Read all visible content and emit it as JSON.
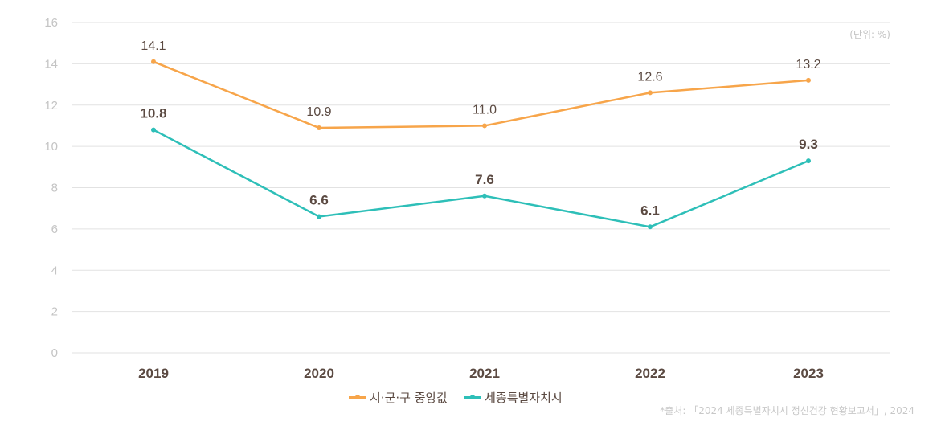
{
  "chart_data": {
    "type": "line",
    "title": "",
    "unit_label": "(단위: %)",
    "xlabel": "",
    "ylabel": "",
    "categories": [
      "2019",
      "2020",
      "2021",
      "2022",
      "2023"
    ],
    "yticks": [
      "0",
      "2",
      "4",
      "6",
      "8",
      "10",
      "12",
      "14",
      "16"
    ],
    "ylim": [
      0,
      16
    ],
    "grid": true,
    "legend_position": "bottom-center",
    "series": [
      {
        "name": "시·군·구 중앙값",
        "color": "#f7a54a",
        "values": [
          14.1,
          10.9,
          11.0,
          12.6,
          13.2
        ],
        "labels": [
          "14.1",
          "10.9",
          "11.0",
          "12.6",
          "13.2"
        ]
      },
      {
        "name": "세종특별자치시",
        "color": "#2ebfb8",
        "values": [
          10.8,
          6.6,
          7.6,
          6.1,
          9.3
        ],
        "labels": [
          "10.8",
          "6.6",
          "7.6",
          "6.1",
          "9.3"
        ]
      }
    ],
    "source": "*출처: 「2024 세종특별자치시 정신건강 현황보고서」, 2024"
  }
}
